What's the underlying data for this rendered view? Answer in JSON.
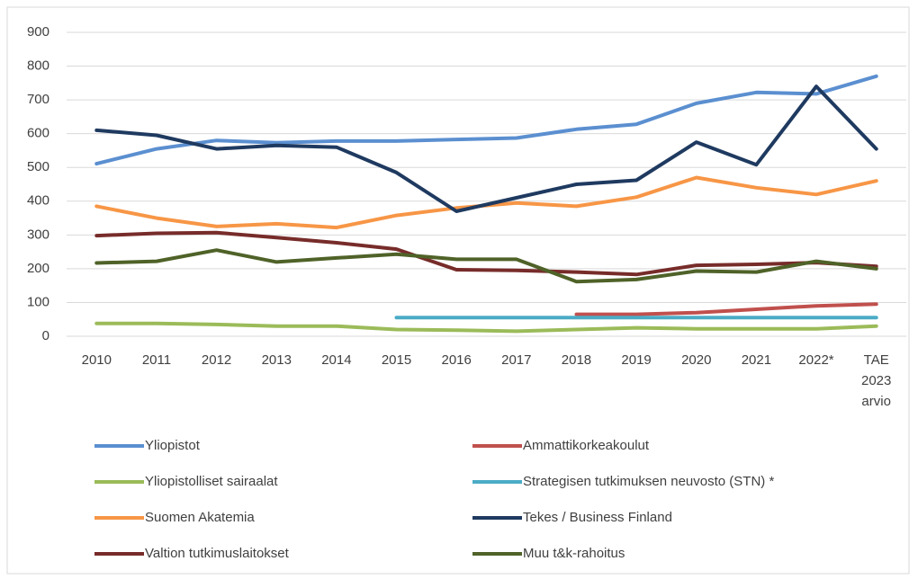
{
  "chart_data": {
    "type": "line",
    "categories": [
      "2010",
      "2011",
      "2012",
      "2013",
      "2014",
      "2015",
      "2016",
      "2017",
      "2018",
      "2019",
      "2020",
      "2021",
      "2022*",
      "TAE 2023 arvio"
    ],
    "ylim": [
      0,
      900
    ],
    "yticks": [
      0,
      100,
      200,
      300,
      400,
      500,
      600,
      700,
      800,
      900
    ],
    "grid": true,
    "series": [
      {
        "name": "Yliopistot",
        "color": "#5b8fd0",
        "values": [
          511,
          555,
          580,
          573,
          578,
          578,
          583,
          587,
          613,
          628,
          690,
          722,
          718,
          770
        ]
      },
      {
        "name": "Ammattikorkeakoulut",
        "color": "#c0504d",
        "values": [
          null,
          null,
          null,
          null,
          null,
          null,
          null,
          null,
          65,
          65,
          70,
          80,
          90,
          95
        ]
      },
      {
        "name": "Yliopistolliset sairaalat",
        "color": "#9bbb59",
        "values": [
          38,
          38,
          35,
          30,
          30,
          20,
          18,
          15,
          20,
          25,
          22,
          22,
          22,
          30
        ]
      },
      {
        "name": "Strategisen tutkimuksen neuvosto (STN) *",
        "color": "#4bacc6",
        "values": [
          null,
          null,
          null,
          null,
          null,
          55,
          55,
          55,
          55,
          55,
          55,
          55,
          55,
          55
        ]
      },
      {
        "name": "Suomen Akatemia",
        "color": "#f79646",
        "values": [
          385,
          350,
          325,
          333,
          322,
          358,
          380,
          395,
          385,
          412,
          470,
          440,
          420,
          460
        ]
      },
      {
        "name": "Tekes / Business Finland",
        "color": "#1f3a60",
        "values": [
          610,
          595,
          555,
          565,
          560,
          485,
          370,
          410,
          450,
          462,
          575,
          508,
          740,
          555
        ]
      },
      {
        "name": "Valtion tutkimuslaitokset",
        "color": "#772c2a",
        "values": [
          298,
          305,
          307,
          292,
          277,
          258,
          197,
          195,
          190,
          183,
          210,
          213,
          218,
          207
        ]
      },
      {
        "name": "Muu t&k-rahoitus",
        "color": "#4f6228",
        "values": [
          217,
          222,
          255,
          220,
          232,
          243,
          228,
          228,
          162,
          168,
          193,
          190,
          222,
          200
        ]
      }
    ]
  }
}
